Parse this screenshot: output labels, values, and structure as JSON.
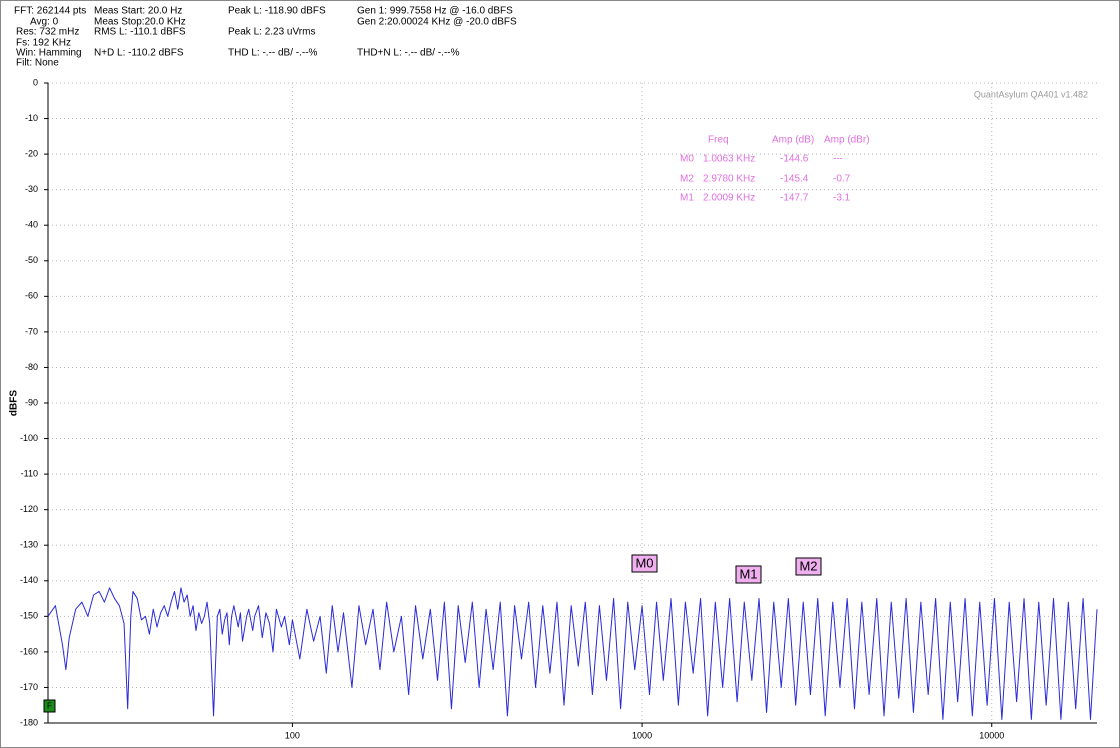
{
  "header": {
    "items": [
      "FFT: 262144 pts",
      "Avg: 0",
      "Res: 732 mHz",
      "Fs: 192 KHz",
      "Win: Hamming",
      "Filt: None",
      "Meas Start: 20.0 Hz",
      "Meas Stop:20.0 KHz",
      "RMS L: -110.1 dBFS",
      "N+D L: -110.2 dBFS",
      "Peak L: -118.90 dBFS",
      "Peak L: 2.23 uVrms",
      "THD L: -.-- dB/ -.--%",
      "Gen 1: 999.7558 Hz @ -16.0  dBFS",
      "Gen 2:20.00024 KHz @ -20.0  dBFS",
      "THD+N L: -.-- dB/ -.--%"
    ]
  },
  "chart_data": {
    "type": "line",
    "ylabel": "dBFS",
    "watermark": "QuantAsylum QA401 v1.482",
    "channel_tag": "F",
    "xscale": "log",
    "grid": true,
    "xlim": [
      20,
      20000
    ],
    "xticks": [
      100,
      1000,
      10000
    ],
    "ylim": [
      -180,
      0
    ],
    "yticks": [
      0,
      -10,
      -20,
      -30,
      -40,
      -50,
      -60,
      -70,
      -80,
      -90,
      -100,
      -110,
      -120,
      -130,
      -140,
      -150,
      -160,
      -170,
      -180
    ],
    "x": [
      20,
      21,
      22,
      22.5,
      23,
      24,
      25,
      26,
      27,
      28,
      29,
      30,
      31,
      32,
      33,
      33.8,
      34.5,
      35,
      36,
      37,
      38,
      39,
      40,
      41,
      42,
      43,
      44,
      45,
      46,
      47,
      48,
      49,
      50,
      51,
      52,
      53,
      54,
      55,
      56,
      57,
      58,
      59.5,
      61,
      62,
      63,
      64,
      65,
      66,
      67,
      68,
      70,
      71,
      72,
      74,
      75,
      77,
      78,
      80,
      82,
      84,
      86,
      88,
      90,
      93,
      95,
      98,
      100,
      105,
      110,
      115,
      120,
      125,
      130,
      135,
      140,
      148,
      155,
      162,
      170,
      178,
      186,
      195,
      205,
      215,
      225,
      236,
      248,
      260,
      272,
      285,
      298,
      312,
      327,
      342,
      358,
      375,
      393,
      412,
      432,
      452,
      474,
      496,
      520,
      545,
      571,
      598,
      627,
      657,
      688,
      721,
      755,
      791,
      829,
      868,
      910,
      953,
      1000,
      1050,
      1100,
      1150,
      1210,
      1270,
      1330,
      1400,
      1470,
      1540,
      1620,
      1700,
      1780,
      1870,
      1960,
      2060,
      2160,
      2270,
      2380,
      2500,
      2620,
      2750,
      2890,
      3030,
      3180,
      3340,
      3510,
      3680,
      3860,
      4050,
      4250,
      4460,
      4690,
      4920,
      5160,
      5420,
      5690,
      5970,
      6270,
      6580,
      6910,
      7250,
      7610,
      7990,
      8390,
      8800,
      9240,
      9700,
      10180,
      10690,
      11220,
      11780,
      12370,
      12980,
      13630,
      14310,
      15020,
      15770,
      16560,
      17380,
      18250,
      19160,
      20000
    ],
    "series": [
      {
        "name": "L",
        "color": "#2a2ad8",
        "values": [
          -150,
          -147,
          -158,
          -165,
          -156,
          -148,
          -146,
          -150,
          -144,
          -143,
          -146,
          -142,
          -145,
          -147,
          -152,
          -176,
          -150,
          -143,
          -145,
          -151,
          -150,
          -155,
          -148,
          -153,
          -149,
          -147,
          -150,
          -146,
          -143,
          -148,
          -142,
          -146,
          -144,
          -150,
          -147,
          -154,
          -149,
          -152,
          -150,
          -146,
          -152,
          -178,
          -150,
          -148,
          -155,
          -151,
          -149,
          -158,
          -150,
          -147,
          -153,
          -149,
          -157,
          -150,
          -148,
          -154,
          -150,
          -147,
          -156,
          -149,
          -152,
          -160,
          -148,
          -153,
          -150,
          -158,
          -151,
          -162,
          -148,
          -157,
          -150,
          -166,
          -147,
          -160,
          -149,
          -170,
          -147,
          -158,
          -148,
          -165,
          -146,
          -160,
          -150,
          -172,
          -147,
          -162,
          -148,
          -168,
          -146,
          -176,
          -147,
          -163,
          -146,
          -170,
          -148,
          -165,
          -146,
          -178,
          -147,
          -162,
          -146,
          -170,
          -147,
          -166,
          -146,
          -175,
          -147,
          -164,
          -146,
          -172,
          -147,
          -168,
          -145,
          -176,
          -146,
          -165,
          -147,
          -172,
          -146,
          -168,
          -145,
          -175,
          -146,
          -166,
          -145,
          -178,
          -146,
          -170,
          -145,
          -174,
          -146,
          -168,
          -145,
          -177,
          -146,
          -170,
          -145,
          -175,
          -146,
          -172,
          -145,
          -178,
          -146,
          -170,
          -145,
          -176,
          -146,
          -172,
          -145,
          -178,
          -146,
          -173,
          -145,
          -177,
          -146,
          -172,
          -145,
          -179,
          -146,
          -174,
          -145,
          -178,
          -146,
          -175,
          -145,
          -179,
          -146,
          -174,
          -145,
          -179,
          -146,
          -175,
          -145,
          -179,
          -146,
          -176,
          -145,
          -179,
          -148
        ]
      }
    ],
    "markers": {
      "headers": [
        "Freq",
        "Amp (dB)",
        "Amp (dBr)"
      ],
      "rows": [
        [
          "M0",
          "1.0063 KHz",
          "-144.6",
          "---"
        ],
        [
          "M2",
          "2.9780 KHz",
          "-145.4",
          "-0.7"
        ],
        [
          "M1",
          "2.0009 KHz",
          "-147.7",
          "-3.1"
        ]
      ],
      "tags": [
        "M0",
        "M1",
        "M2"
      ]
    }
  }
}
